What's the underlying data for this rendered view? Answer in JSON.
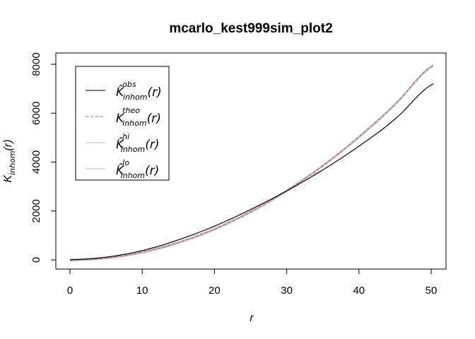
{
  "chart_data": {
    "type": "line",
    "title": "mcarlo_kest999sim_plot2",
    "xlabel": "r",
    "ylabel_main": "K",
    "ylabel_sub": "inhom",
    "ylabel_arg": "(r)",
    "xlim": [
      0,
      50.3
    ],
    "ylim": [
      -400,
      8000
    ],
    "x_ticks": [
      0,
      10,
      20,
      30,
      40,
      50
    ],
    "y_ticks": [
      0,
      2000,
      4000,
      6000,
      8000
    ],
    "grid": false,
    "legend_placement": "top-left",
    "x": [
      0,
      5,
      10,
      15,
      20,
      25,
      30,
      35,
      40,
      45,
      50.3
    ],
    "series": [
      {
        "name": "obs",
        "legend_main": "K̂",
        "legend_sup": "obs",
        "legend_sub": "inhom",
        "legend_arg": "(r)",
        "color": "#000000",
        "dash": "solid",
        "values": [
          0,
          110,
          380,
          820,
          1380,
          2060,
          2820,
          3680,
          4650,
          5760,
          7200
        ]
      },
      {
        "name": "theo",
        "legend_main": "K",
        "legend_sup": "theo",
        "legend_sub": "inhom",
        "legend_arg": "(r)",
        "color": "#df536b",
        "dash": "dashed",
        "values": [
          0,
          79,
          314,
          707,
          1257,
          1963,
          2827,
          3848,
          5027,
          6362,
          7948
        ]
      },
      {
        "name": "hi",
        "legend_main": "K̂",
        "legend_sup": "hi",
        "legend_sub": "inhom",
        "legend_arg": "(r)",
        "color": "#bebebe",
        "dash": "solid",
        "values": [
          40,
          119,
          354,
          747,
          1297,
          2003,
          2867,
          3888,
          5067,
          6402,
          7988
        ]
      },
      {
        "name": "lo",
        "legend_main": "K̂",
        "legend_sup": "lo",
        "legend_sub": "inhom",
        "legend_arg": "(r)",
        "color": "#bebebe",
        "dash": "solid",
        "values": [
          -40,
          39,
          274,
          667,
          1217,
          1923,
          2787,
          3808,
          4987,
          6322,
          7908
        ]
      }
    ]
  }
}
